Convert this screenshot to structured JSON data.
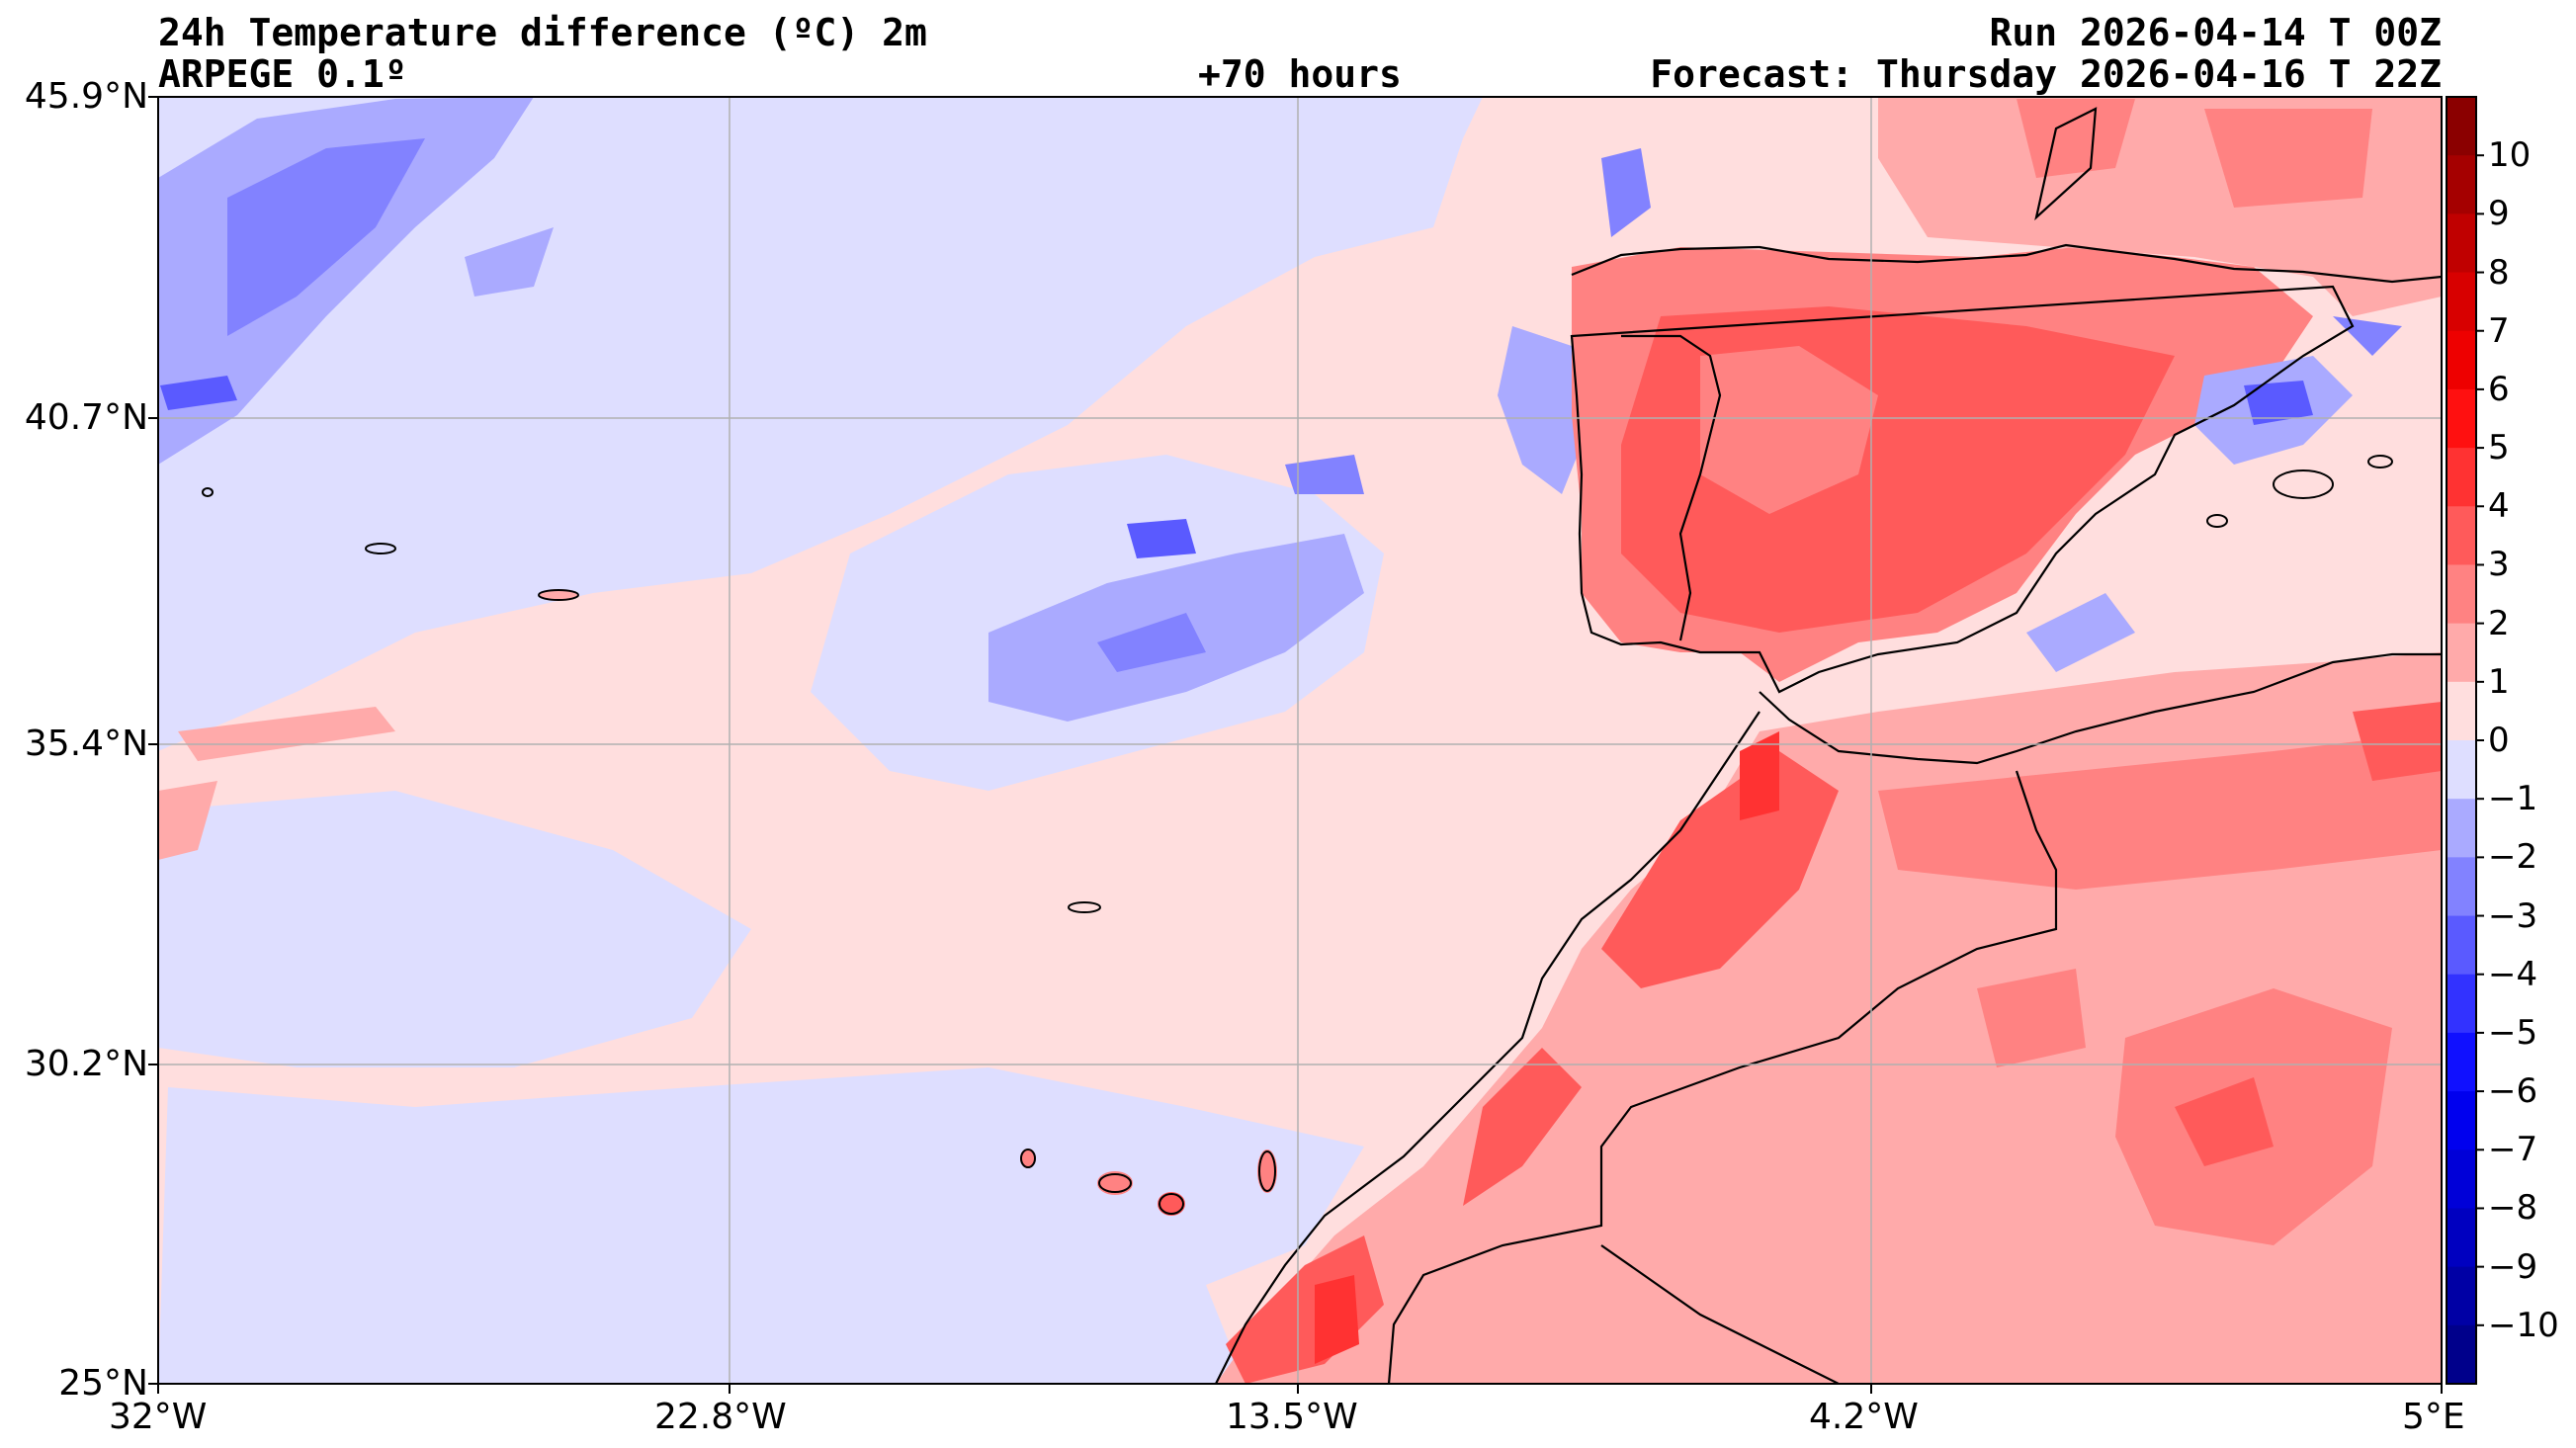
{
  "header": {
    "title": "24h Temperature difference (ºC) 2m",
    "model": "ARPEGE 0.1º",
    "lead_time": "+70 hours",
    "run": "Run 2026-04-14 T 00Z",
    "forecast": "Forecast: Thursday 2026-04-16 T 22Z"
  },
  "axes": {
    "lat_labels": [
      "45.9°N",
      "40.7°N",
      "35.4°N",
      "30.2°N",
      "25°N"
    ],
    "lon_labels": [
      "32°W",
      "22.8°W",
      "13.5°W",
      "4.2°W",
      "5°E"
    ]
  },
  "colorbar": {
    "ticks": [
      "10",
      "9",
      "8",
      "7",
      "6",
      "5",
      "4",
      "3",
      "2",
      "1",
      "0",
      "−1",
      "−2",
      "−3",
      "−4",
      "−5",
      "−6",
      "−7",
      "−8",
      "−9",
      "−10"
    ],
    "colors_top_to_bottom": [
      "#8b0000",
      "#a50000",
      "#c00000",
      "#d80000",
      "#ee0000",
      "#ff1010",
      "#ff3232",
      "#ff5a5a",
      "#ff8282",
      "#ffaaaa",
      "#ffdede",
      "#dedeff",
      "#aaaaff",
      "#8282ff",
      "#5a5aff",
      "#3232ff",
      "#1010ff",
      "#0000ee",
      "#0000d8",
      "#0000c0",
      "#0000a5",
      "#00008b"
    ]
  },
  "map": {
    "ocean_color": "#ffdede",
    "cool_color": "#dedeff",
    "lat_range": [
      25,
      45.9
    ],
    "lon_range": [
      -32,
      5
    ]
  }
}
